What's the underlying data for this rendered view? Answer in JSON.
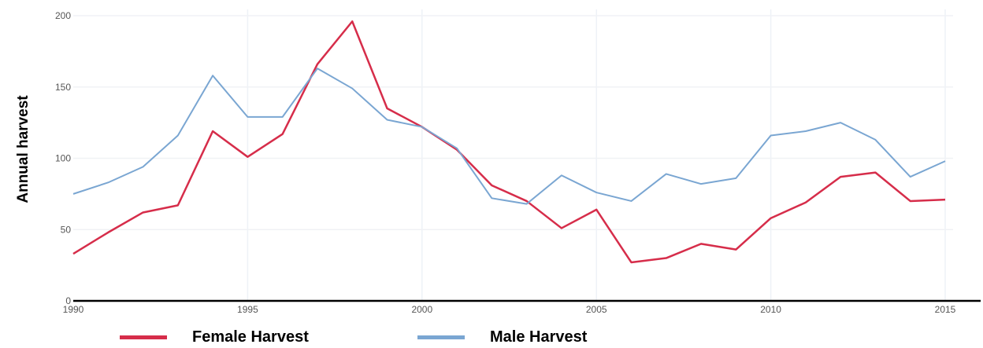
{
  "chart_data": {
    "type": "line",
    "x": [
      1990,
      1991,
      1992,
      1993,
      1994,
      1995,
      1996,
      1997,
      1998,
      1999,
      2000,
      2001,
      2002,
      2003,
      2004,
      2005,
      2006,
      2007,
      2008,
      2009,
      2010,
      2011,
      2012,
      2013,
      2014,
      2015
    ],
    "series": [
      {
        "name": "Female Harvest",
        "color": "#d62d4a",
        "values": [
          33,
          48,
          62,
          67,
          119,
          101,
          117,
          166,
          196,
          135,
          122,
          106,
          81,
          70,
          51,
          64,
          27,
          30,
          40,
          36,
          58,
          69,
          87,
          90,
          70,
          71
        ]
      },
      {
        "name": "Male Harvest",
        "color": "#7aa6d2",
        "values": [
          75,
          83,
          94,
          116,
          158,
          129,
          129,
          163,
          149,
          127,
          122,
          107,
          72,
          68,
          88,
          76,
          70,
          89,
          82,
          86,
          116,
          119,
          125,
          113,
          87,
          98
        ]
      }
    ],
    "xlabel": "",
    "ylabel": "Annual harvest",
    "xlim": [
      1990,
      2015
    ],
    "ylim": [
      0,
      200
    ],
    "xticks": [
      "1990",
      "1995",
      "2000",
      "2005",
      "2010",
      "2015"
    ],
    "yticks": [
      "0",
      "50",
      "100",
      "150",
      "200"
    ],
    "grid": true,
    "legend_position": "bottom"
  }
}
